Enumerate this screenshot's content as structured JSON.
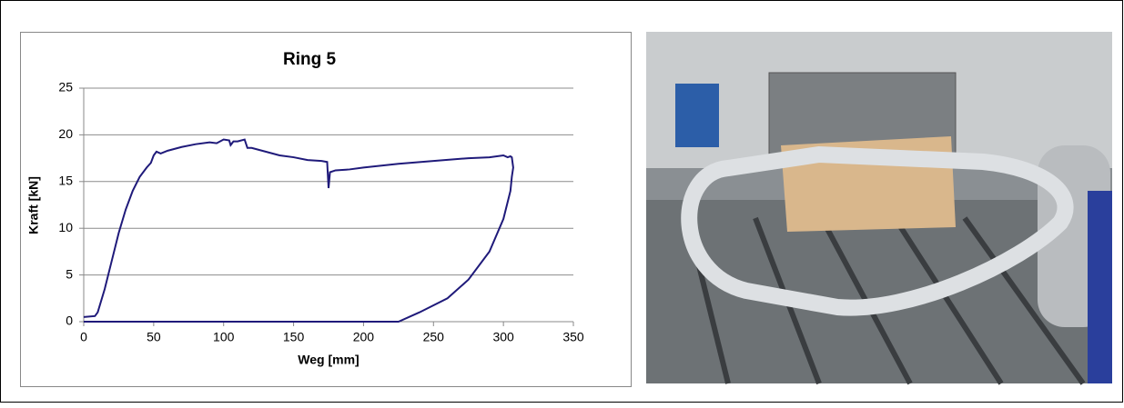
{
  "chart_data": {
    "type": "line",
    "title": "Ring 5",
    "x_label": "Weg [mm]",
    "y_label": "Kraft [kN]",
    "x": [
      0,
      8,
      10,
      15,
      20,
      25,
      30,
      35,
      40,
      45,
      48,
      50,
      52,
      55,
      60,
      70,
      80,
      90,
      95,
      100,
      104,
      105,
      107,
      110,
      115,
      117,
      120,
      130,
      140,
      150,
      160,
      170,
      174,
      175,
      176,
      180,
      190,
      200,
      225,
      250,
      275,
      290,
      300,
      303,
      305,
      306,
      307,
      306,
      305,
      300,
      290,
      275,
      260,
      240,
      225,
      0
    ],
    "values": [
      0.5,
      0.6,
      1,
      3.5,
      6.5,
      9.5,
      12,
      14,
      15.5,
      16.5,
      17,
      17.8,
      18.2,
      18,
      18.3,
      18.7,
      19,
      19.2,
      19.1,
      19.5,
      19.4,
      18.9,
      19.3,
      19.3,
      19.5,
      18.6,
      18.6,
      18.2,
      17.8,
      17.6,
      17.3,
      17.2,
      17.1,
      14.3,
      16,
      16.2,
      16.3,
      16.5,
      16.9,
      17.2,
      17.5,
      17.6,
      17.8,
      17.6,
      17.7,
      17.6,
      16.5,
      15.5,
      14,
      11,
      7.5,
      4.5,
      2.5,
      1,
      0,
      0
    ],
    "color": "#1f1a7a",
    "xlim": [
      0,
      350
    ],
    "xticks": [
      0,
      50,
      100,
      150,
      200,
      250,
      300,
      350
    ],
    "ylim": [
      0,
      25
    ],
    "yticks": [
      0,
      5,
      10,
      15,
      20,
      25
    ],
    "grid": true
  }
}
